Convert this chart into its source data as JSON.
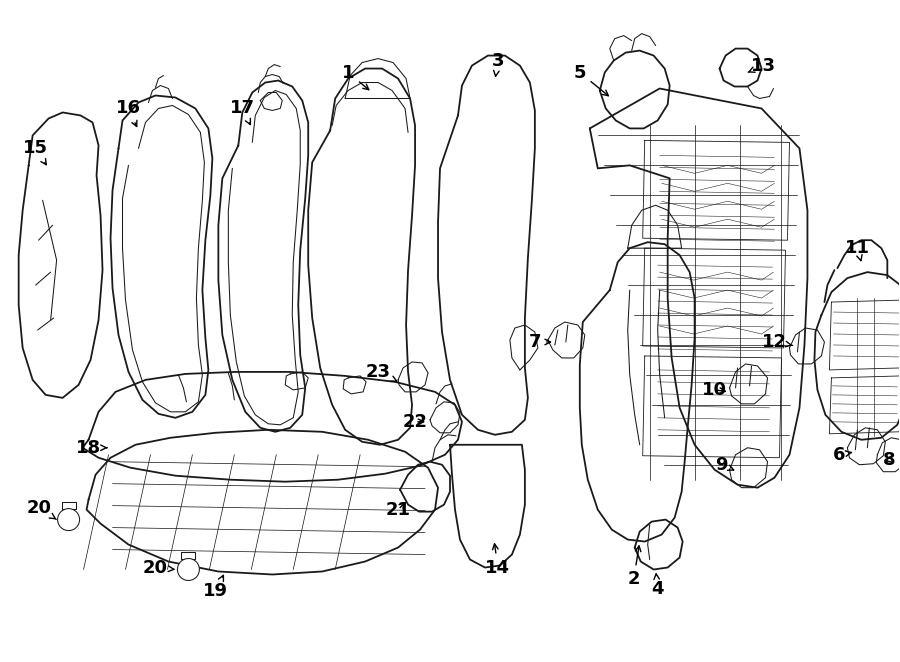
{
  "background_color": "#ffffff",
  "line_color": "#1a1a1a",
  "text_color": "#000000",
  "fig_width": 9.0,
  "fig_height": 6.62,
  "label_fontsize": 13
}
